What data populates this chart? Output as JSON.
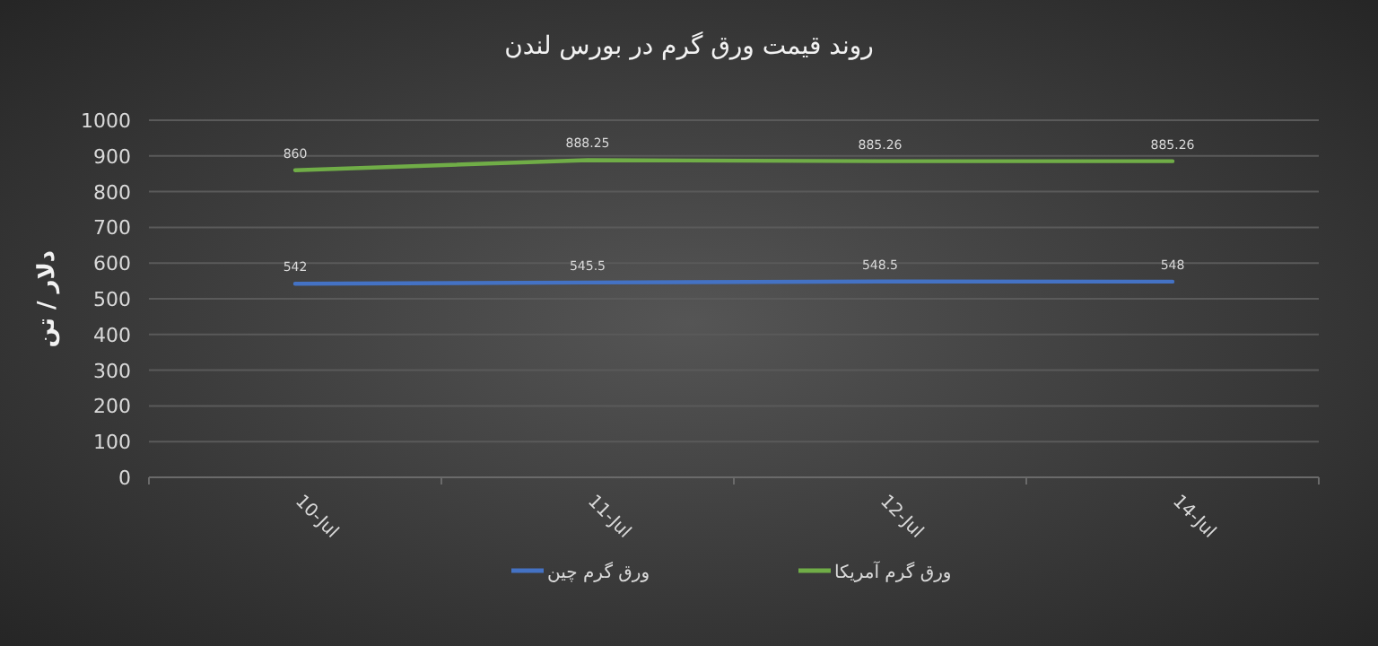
{
  "chart_data": {
    "type": "line",
    "title": "روند قیمت ورق گرم در بورس لندن",
    "ylabel": "دلار / تن",
    "categories": [
      "10-Jul",
      "11-Jul",
      "12-Jul",
      "14-Jul"
    ],
    "series": [
      {
        "name": "ورق گرم چین",
        "color": "#4472c4",
        "values": [
          542,
          545.5,
          548.5,
          548
        ]
      },
      {
        "name": "ورق گرم آمریکا",
        "color": "#70ad47",
        "values": [
          860,
          888.25,
          885.26,
          885.26
        ]
      }
    ],
    "ylim": [
      0,
      1000
    ],
    "yticks": [
      0,
      100,
      200,
      300,
      400,
      500,
      600,
      700,
      800,
      900,
      1000
    ],
    "grid": "y",
    "legend": "bottom",
    "data_labels": true,
    "marker": "none",
    "line_style": "solid"
  }
}
